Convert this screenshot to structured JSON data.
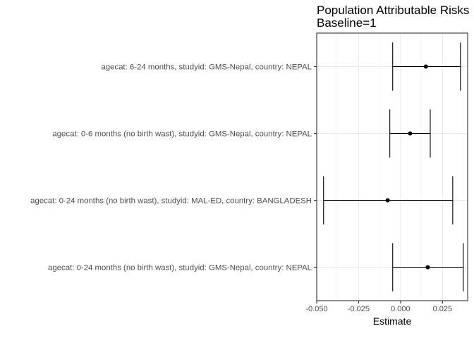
{
  "chart_data": {
    "type": "scatter",
    "title_lines": [
      "Population Attributable Risks",
      "Baseline=1"
    ],
    "xlabel": "Estimate",
    "ylabel": "",
    "xlim": [
      -0.05,
      0.04
    ],
    "x_ticks": [
      -0.05,
      -0.025,
      0.0,
      0.025
    ],
    "x_tick_labels": [
      "-0.050",
      "-0.025",
      "0.000",
      "0.025"
    ],
    "grid": true,
    "categories": [
      "agecat: 6-24 months, studyid: GMS-Nepal, country: NEPAL",
      "agecat: 0-6 months (no birth wast), studyid: GMS-Nepal, country: NEPAL",
      "agecat: 0-24 months (no birth wast), studyid: MAL-ED, country: BANGLADESH",
      "agecat: 0-24 months (no birth wast), studyid: GMS-Nepal, country: NEPAL"
    ],
    "estimates": [
      0.0151,
      0.0057,
      -0.0077,
      0.0162
    ],
    "ci_lower": [
      -0.0047,
      -0.0064,
      -0.0459,
      -0.0047
    ],
    "ci_upper": [
      0.0357,
      0.0177,
      0.0311,
      0.0374
    ]
  }
}
